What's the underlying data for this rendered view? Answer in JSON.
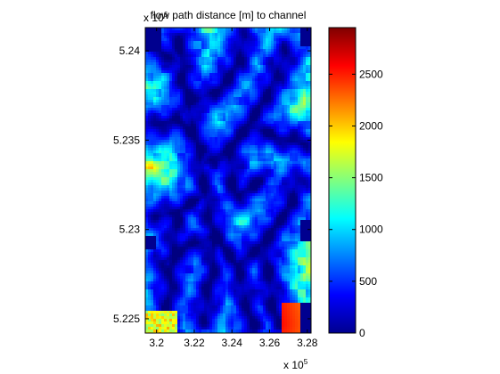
{
  "chart_data": {
    "type": "heatmap",
    "title": "flow path distance [m] to channel",
    "xlabel": "",
    "ylabel": "",
    "x_multiplier": "x 10",
    "x_exponent": "5",
    "y_multiplier": "x 10",
    "y_exponent": "6",
    "xlim": [
      319400,
      328200
    ],
    "ylim": [
      5224200,
      5241300
    ],
    "xticks": [
      {
        "value": 320000,
        "label": "3.2"
      },
      {
        "value": 322000,
        "label": "3.22"
      },
      {
        "value": 324000,
        "label": "3.24"
      },
      {
        "value": 326000,
        "label": "3.26"
      },
      {
        "value": 328000,
        "label": "3.28"
      }
    ],
    "yticks": [
      {
        "value": 5225000,
        "label": "5.225"
      },
      {
        "value": 5230000,
        "label": "5.23"
      },
      {
        "value": 5235000,
        "label": "5.235"
      },
      {
        "value": 5240000,
        "label": "5.24"
      }
    ],
    "colorbar": {
      "colormap": "jet",
      "clim": [
        0,
        2950
      ],
      "ticks": [
        {
          "value": 0,
          "label": "0"
        },
        {
          "value": 500,
          "label": "500"
        },
        {
          "value": 1000,
          "label": "1000"
        },
        {
          "value": 1500,
          "label": "1500"
        },
        {
          "value": 2000,
          "label": "2000"
        },
        {
          "value": 2500,
          "label": "2500"
        }
      ]
    },
    "background_color": "#00008f",
    "grid": false
  }
}
